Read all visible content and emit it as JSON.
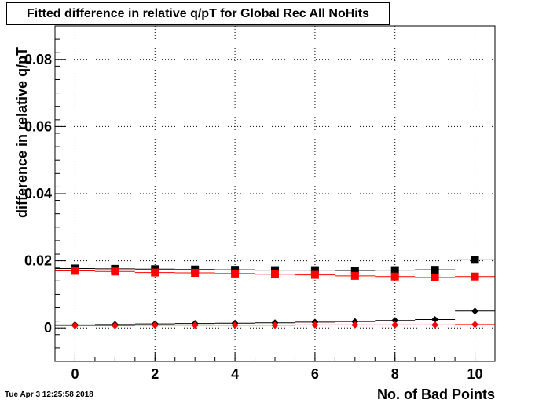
{
  "chart_data": {
    "type": "scatter",
    "title": "Fitted difference in relative q/pT for Global Rec All NoHits",
    "xlabel": "No. of Bad Points",
    "ylabel": "difference in relative q/pT",
    "xlim": [
      -0.5,
      10.5
    ],
    "ylim": [
      -0.01,
      0.09
    ],
    "xticks": [
      0,
      2,
      4,
      6,
      8,
      10
    ],
    "yticks": [
      0,
      0.02,
      0.04,
      0.06,
      0.08
    ],
    "xtick_labels": [
      "0",
      "2",
      "4",
      "6",
      "8",
      "10"
    ],
    "ytick_labels": [
      "0",
      "0.02",
      "0.04",
      "0.06",
      "0.08"
    ],
    "grid": true,
    "series": [
      {
        "color": "#000000",
        "marker": "square",
        "x": [
          0,
          1,
          2,
          3,
          4,
          5,
          6,
          7,
          8,
          9,
          10
        ],
        "y": [
          0.0177,
          0.0176,
          0.0175,
          0.0174,
          0.0173,
          0.0172,
          0.0172,
          0.0171,
          0.0172,
          0.0173,
          0.0203
        ]
      },
      {
        "color": "#ff0000",
        "marker": "square",
        "x": [
          0,
          1,
          2,
          3,
          4,
          5,
          6,
          7,
          8,
          9,
          10
        ],
        "y": [
          0.017,
          0.0168,
          0.0165,
          0.0164,
          0.0162,
          0.016,
          0.0158,
          0.0155,
          0.0153,
          0.015,
          0.0153
        ]
      },
      {
        "color": "#000000",
        "marker": "diamond",
        "x": [
          0,
          1,
          2,
          3,
          4,
          5,
          6,
          7,
          8,
          9,
          10
        ],
        "y": [
          0.0009,
          0.001,
          0.0012,
          0.0013,
          0.0014,
          0.0015,
          0.0017,
          0.0019,
          0.0022,
          0.0025,
          0.005
        ]
      },
      {
        "color": "#ff0000",
        "marker": "diamond",
        "x": [
          0,
          1,
          2,
          3,
          4,
          5,
          6,
          7,
          8,
          9,
          10
        ],
        "y": [
          0.0007,
          0.0007,
          0.0008,
          0.0008,
          0.0008,
          0.0008,
          0.0009,
          0.0009,
          0.0009,
          0.0009,
          0.001
        ]
      }
    ]
  },
  "footer": {
    "datestamp": "Tue Apr  3 12:25:58 2018"
  }
}
